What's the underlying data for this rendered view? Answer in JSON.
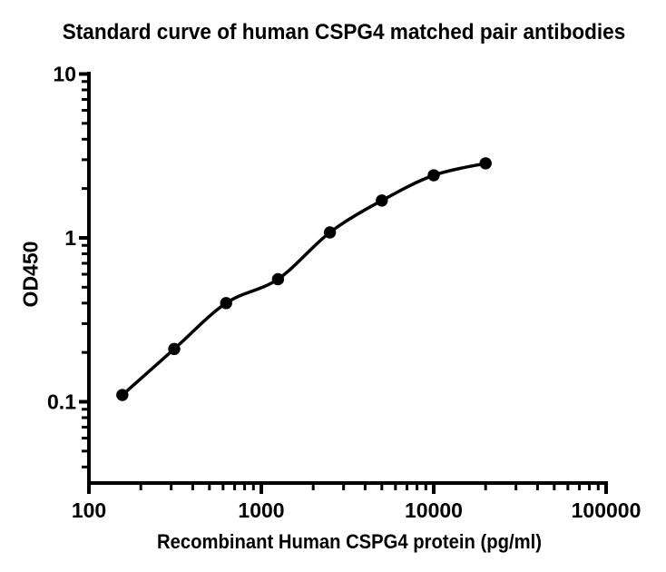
{
  "chart_data": {
    "type": "scatter",
    "title": "Standard curve of human CSPG4 matched pair antibodies",
    "xlabel": "Recombinant Human CSPG4 protein (pg/ml)",
    "ylabel": "OD450",
    "x_scale": "log",
    "y_scale": "log",
    "xlim": [
      100,
      100000
    ],
    "ylim": [
      0.032,
      10
    ],
    "x_ticks": [
      100,
      1000,
      10000,
      100000
    ],
    "y_ticks": [
      10,
      1,
      0.1
    ],
    "grid": false,
    "legend": "none",
    "series": [
      {
        "name": "standard curve",
        "x": [
          156.25,
          312.5,
          625,
          1250,
          2500,
          5000,
          10000,
          20000
        ],
        "y": [
          0.11,
          0.21,
          0.4,
          0.56,
          1.08,
          1.69,
          2.41,
          2.85
        ],
        "marker": "filled-circle",
        "line": "smooth-fit"
      }
    ]
  },
  "colors": {
    "foreground": "#000000",
    "background": "#ffffff"
  }
}
